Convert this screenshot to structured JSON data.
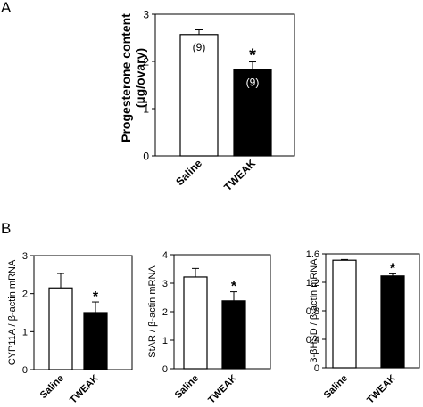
{
  "panel_labels": {
    "a": "A",
    "b": "B"
  },
  "colors": {
    "saline_fill": "#ffffff",
    "tweak_fill": "#000000",
    "axis": "#000000",
    "background": "#ffffff"
  },
  "chart_data": [
    {
      "type": "bar",
      "panel": "A",
      "categories": [
        "Saline",
        "TWEAK"
      ],
      "values": [
        2.57,
        1.82
      ],
      "errors": [
        0.1,
        0.17
      ],
      "bar_colors": [
        "white",
        "black"
      ],
      "bar_labels": [
        "(9)",
        "(9)"
      ],
      "significance": [
        "",
        "*"
      ],
      "ylabel_line1": "Progesterone content",
      "ylabel_line2": "(µg/ovary)",
      "ylim": [
        0,
        3
      ],
      "yticks": [
        0,
        1,
        2,
        3
      ],
      "ytick_labels": [
        "0",
        "1",
        "2",
        "3"
      ],
      "grid": false
    },
    {
      "type": "bar",
      "panel": "B",
      "categories": [
        "Saline",
        "TWEAK"
      ],
      "values": [
        2.15,
        1.5
      ],
      "errors": [
        0.38,
        0.28
      ],
      "bar_colors": [
        "white",
        "black"
      ],
      "significance": [
        "",
        "*"
      ],
      "ylabel": "CYP11A / β-actin mRNA",
      "ylim": [
        0,
        3
      ],
      "yticks": [
        0,
        1,
        2,
        3
      ],
      "ytick_labels": [
        "0",
        "1",
        "2",
        "3"
      ],
      "grid": false
    },
    {
      "type": "bar",
      "panel": "B",
      "categories": [
        "Saline",
        "TWEAK"
      ],
      "values": [
        3.22,
        2.38
      ],
      "errors": [
        0.3,
        0.32
      ],
      "bar_colors": [
        "white",
        "black"
      ],
      "significance": [
        "",
        "*"
      ],
      "ylabel": "StAR / β-actin mRNA",
      "ylim": [
        0,
        4
      ],
      "yticks": [
        0,
        1,
        2,
        3,
        4
      ],
      "ytick_labels": [
        "0",
        "1",
        "2",
        "3",
        "4"
      ],
      "grid": false
    },
    {
      "type": "bar",
      "panel": "B",
      "categories": [
        "Saline",
        "TWEAK"
      ],
      "values": [
        1.51,
        1.29
      ],
      "errors": [
        0.01,
        0.03
      ],
      "bar_colors": [
        "white",
        "black"
      ],
      "significance": [
        "",
        "*"
      ],
      "ylabel": "3-βHSD / β-actin mRNA",
      "ylim": [
        0,
        1.6
      ],
      "yticks": [
        0,
        0.4,
        0.8,
        1.2,
        1.6
      ],
      "ytick_labels": [
        "0",
        "0.4",
        "0.8",
        "1.2",
        "1.6"
      ],
      "grid": false
    }
  ]
}
